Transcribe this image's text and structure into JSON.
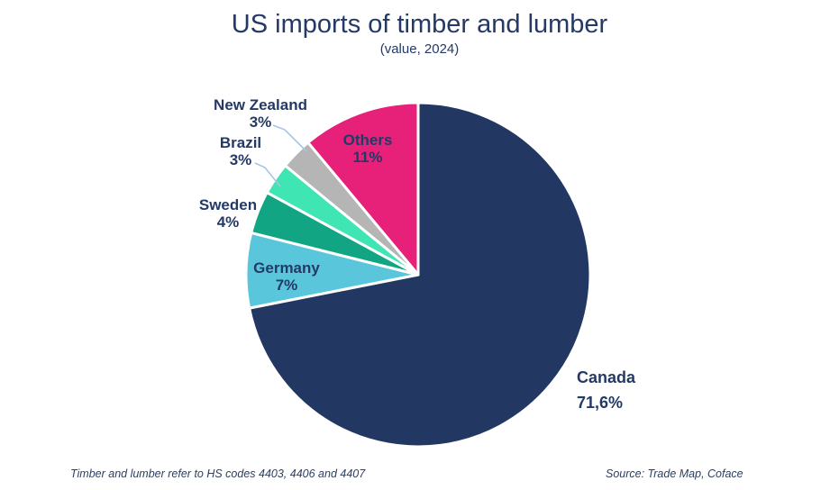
{
  "chart_data": {
    "type": "pie",
    "title": "US imports of timber and lumber",
    "subtitle": "(value, 2024)",
    "start_angle": "top",
    "direction": "clockwise",
    "legend": "none",
    "label_color": "#233A66",
    "leader_line_color": "#A7C4E9",
    "slices": [
      {
        "label": "Canada",
        "value": 71.6,
        "display": "71,6%",
        "color": "#223862"
      },
      {
        "label": "Germany",
        "value": 7,
        "display": "7%",
        "color": "#5AC6DB"
      },
      {
        "label": "Sweden",
        "value": 4,
        "display": "4%",
        "color": "#12A584"
      },
      {
        "label": "Brazil",
        "value": 3,
        "display": "3%",
        "color": "#40E5B4"
      },
      {
        "label": "New Zealand",
        "value": 3,
        "display": "3%",
        "color": "#B5B5B5"
      },
      {
        "label": "Others",
        "value": 11,
        "display": "11%",
        "color": "#E72079"
      }
    ]
  },
  "footer": {
    "footnote": "Timber and lumber refer to HS codes 4403, 4406 and 4407",
    "source": "Source: Trade Map, Coface"
  }
}
